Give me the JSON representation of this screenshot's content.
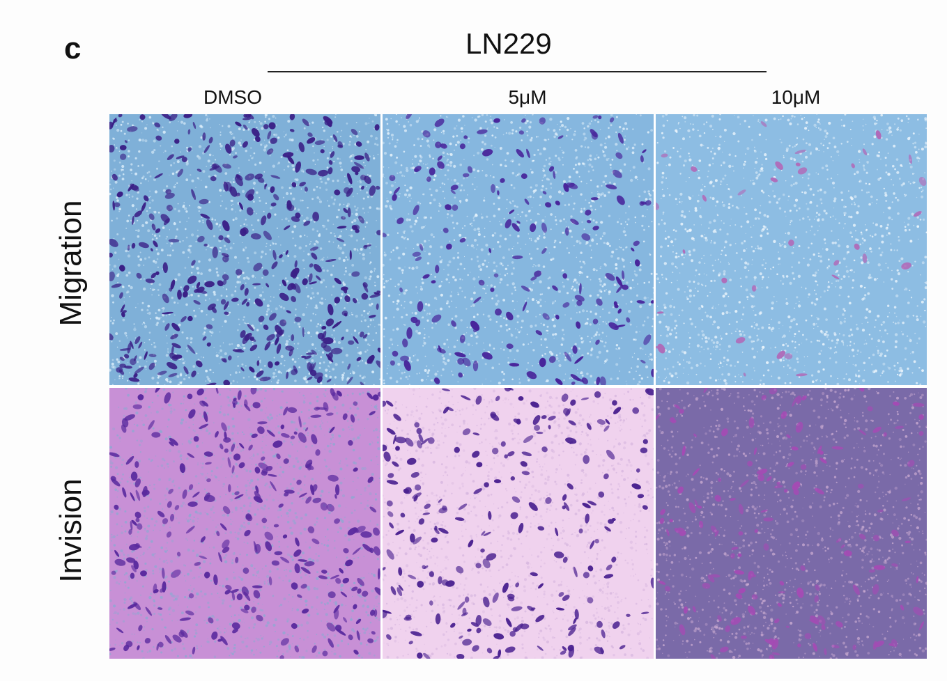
{
  "figure": {
    "panel_letter": "c",
    "cell_line": "LN229",
    "columns": [
      "DMSO",
      "5μM",
      "10μM"
    ],
    "rows": [
      "Migration",
      "Invision"
    ]
  },
  "micrographs": [
    {
      "name": "migration-dmso-micrograph",
      "row": "Migration",
      "column": "DMSO",
      "background": "#7fb0d8",
      "speckle": "#dff0fb",
      "cell_color": "#3a1f86",
      "cell_density": 0.9
    },
    {
      "name": "migration-5um-micrograph",
      "row": "Migration",
      "column": "5μM",
      "background": "#86b7df",
      "speckle": "#e8f4fc",
      "cell_color": "#47239a",
      "cell_density": 0.4
    },
    {
      "name": "migration-10um-micrograph",
      "row": "Migration",
      "column": "10μM",
      "background": "#8dbde3",
      "speckle": "#f1f8fd",
      "cell_color": "#b06ab8",
      "cell_density": 0.08
    },
    {
      "name": "invasion-dmso-micrograph",
      "row": "Invision",
      "column": "DMSO",
      "background": "#c890d6",
      "speckle": "#8fa8d2",
      "cell_color": "#5a2a9e",
      "cell_density": 0.7
    },
    {
      "name": "invasion-5um-micrograph",
      "row": "Invision",
      "column": "5μM",
      "background": "#f0d2ee",
      "speckle": "#d8b8e0",
      "cell_color": "#4a2190",
      "cell_density": 0.55
    },
    {
      "name": "invasion-10um-micrograph",
      "row": "Invision",
      "column": "10μM",
      "background": "#7a6aa8",
      "speckle": "#c7a8cf",
      "cell_color": "#a44bb4",
      "cell_density": 0.35
    }
  ]
}
